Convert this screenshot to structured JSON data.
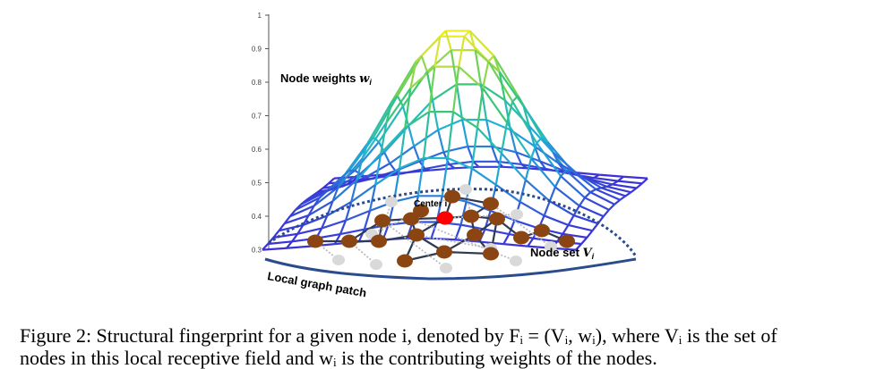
{
  "figure": {
    "axis_ticks": [
      "1",
      "0.9",
      "0.8",
      "0.7",
      "0.6",
      "0.5",
      "0.4",
      "0.3"
    ],
    "label_weights": "Node weights",
    "label_weights_symbol": "w",
    "label_weights_sub": "i",
    "label_center": "Center i",
    "label_nodeset": "Node set",
    "label_nodeset_symbol": "V",
    "label_nodeset_sub": "i",
    "label_patch": "Local graph patch",
    "colors": {
      "node": "#8B4513",
      "center_node": "#ff0000",
      "ghost_node": "#d9d9d9",
      "patch_outline": "#2b4c8c",
      "edge": "#2f3a52"
    }
  },
  "caption": {
    "line1": "Figure 2: Structural fingerprint for a given node i, denoted by Fᵢ = (Vᵢ, wᵢ), where Vᵢ is the set of",
    "line2": "nodes in this local receptive field and wᵢ is the contributing weights of the nodes."
  }
}
